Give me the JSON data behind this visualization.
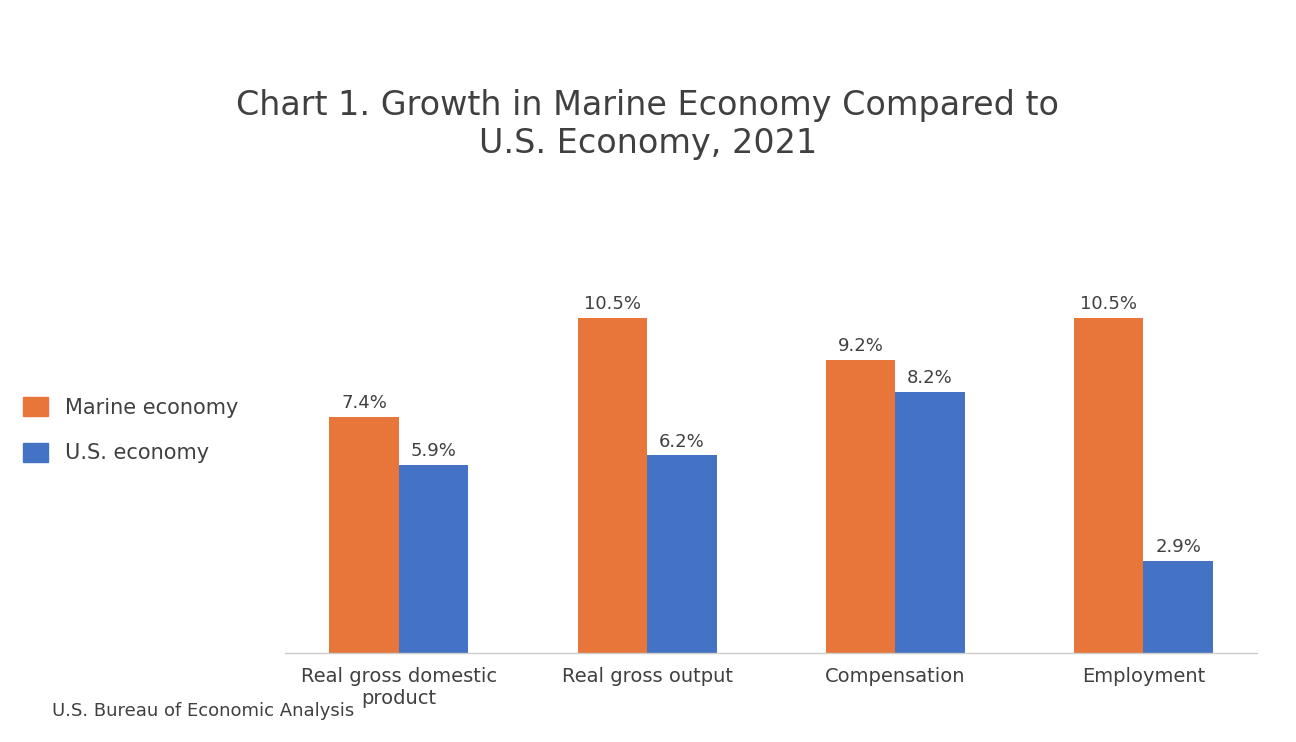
{
  "title": "Chart 1. Growth in Marine Economy Compared to\nU.S. Economy, 2021",
  "categories": [
    "Real gross domestic\nproduct",
    "Real gross output",
    "Compensation",
    "Employment"
  ],
  "marine_values": [
    7.4,
    10.5,
    9.2,
    10.5
  ],
  "us_values": [
    5.9,
    6.2,
    8.2,
    2.9
  ],
  "marine_color": "#E8753A",
  "us_color": "#4472C4",
  "marine_label": "Marine economy",
  "us_label": "U.S. economy",
  "bar_width": 0.28,
  "ylim": [
    0,
    13.5
  ],
  "source_text": "U.S. Bureau of Economic Analysis",
  "title_fontsize": 24,
  "tick_fontsize": 14,
  "annotation_fontsize": 13,
  "legend_fontsize": 15,
  "source_fontsize": 13,
  "background_color": "#FFFFFF"
}
